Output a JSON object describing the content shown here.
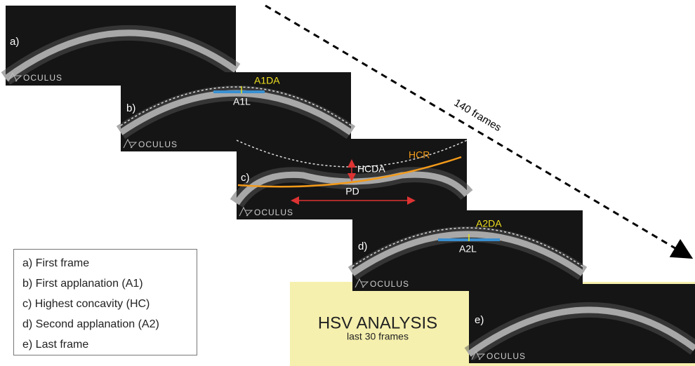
{
  "frames": [
    {
      "label": "a)",
      "logo": "OCULUS"
    },
    {
      "label": "b)",
      "logo": "OCULUS",
      "top_label": "A1DA",
      "bottom_label": "A1L"
    },
    {
      "label": "c)",
      "logo": "OCULUS",
      "curve_label": "HCR",
      "depth_label": "HCDA",
      "distance_label": "PD"
    },
    {
      "label": "d)",
      "logo": "OCULUS",
      "top_label": "A2DA",
      "bottom_label": "A2L"
    },
    {
      "label": "e)",
      "logo": "OCULUS"
    }
  ],
  "arrow_label": "140 frames",
  "legend": [
    "a) First frame",
    "b) First applanation (A1)",
    "c) Highest concavity (HC)",
    "d) Second applanation (A2)",
    "e) Last frame"
  ],
  "hsv": {
    "title": "HSV ANALYSIS",
    "subtitle": "last 30 frames"
  }
}
